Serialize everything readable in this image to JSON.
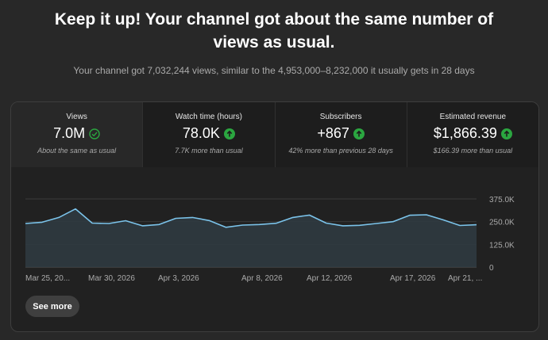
{
  "headline": "Keep it up! Your channel got about the same number of views as usual.",
  "subline": "Your channel got 7,032,244 views, similar to the 4,953,000–8,232,000 it usually gets in 28 days",
  "metrics": [
    {
      "label": "Views",
      "value": "7.0M",
      "sub": "About the same as usual",
      "icon": "check-circle-icon",
      "selected": true
    },
    {
      "label": "Watch time (hours)",
      "value": "78.0K",
      "sub": "7.7K more than usual",
      "icon": "arrow-up-circle-icon",
      "selected": false
    },
    {
      "label": "Subscribers",
      "value": "+867",
      "sub": "42% more than previous 28 days",
      "icon": "arrow-up-circle-icon",
      "selected": false
    },
    {
      "label": "Estimated revenue",
      "value": "$1,866.39",
      "sub": "$166.39 more than usual",
      "icon": "arrow-up-circle-icon",
      "selected": false
    }
  ],
  "colors": {
    "accent_line": "#7bc3ea",
    "up_green": "#2ba640"
  },
  "chart_data": {
    "type": "area",
    "x_tick_labels": [
      "Mar 25, 20...",
      "Mar 30, 2026",
      "Apr 3, 2026",
      "Apr 8, 2026",
      "Apr 12, 2026",
      "Apr 17, 2026",
      "Apr 21, ..."
    ],
    "y_tick_labels": [
      "375.0K",
      "250.0K",
      "125.0K",
      "0"
    ],
    "ylim": [
      0,
      375000
    ],
    "grid": true,
    "series": [
      {
        "values": [
          240000,
          247000,
          273000,
          320000,
          242000,
          240000,
          255000,
          227000,
          234000,
          268000,
          273000,
          256000,
          219000,
          231000,
          234000,
          241000,
          273000,
          286000,
          242000,
          227000,
          230000,
          240000,
          250000,
          285000,
          288000,
          260000,
          229000,
          233000
        ]
      }
    ]
  },
  "see_more_label": "See more"
}
